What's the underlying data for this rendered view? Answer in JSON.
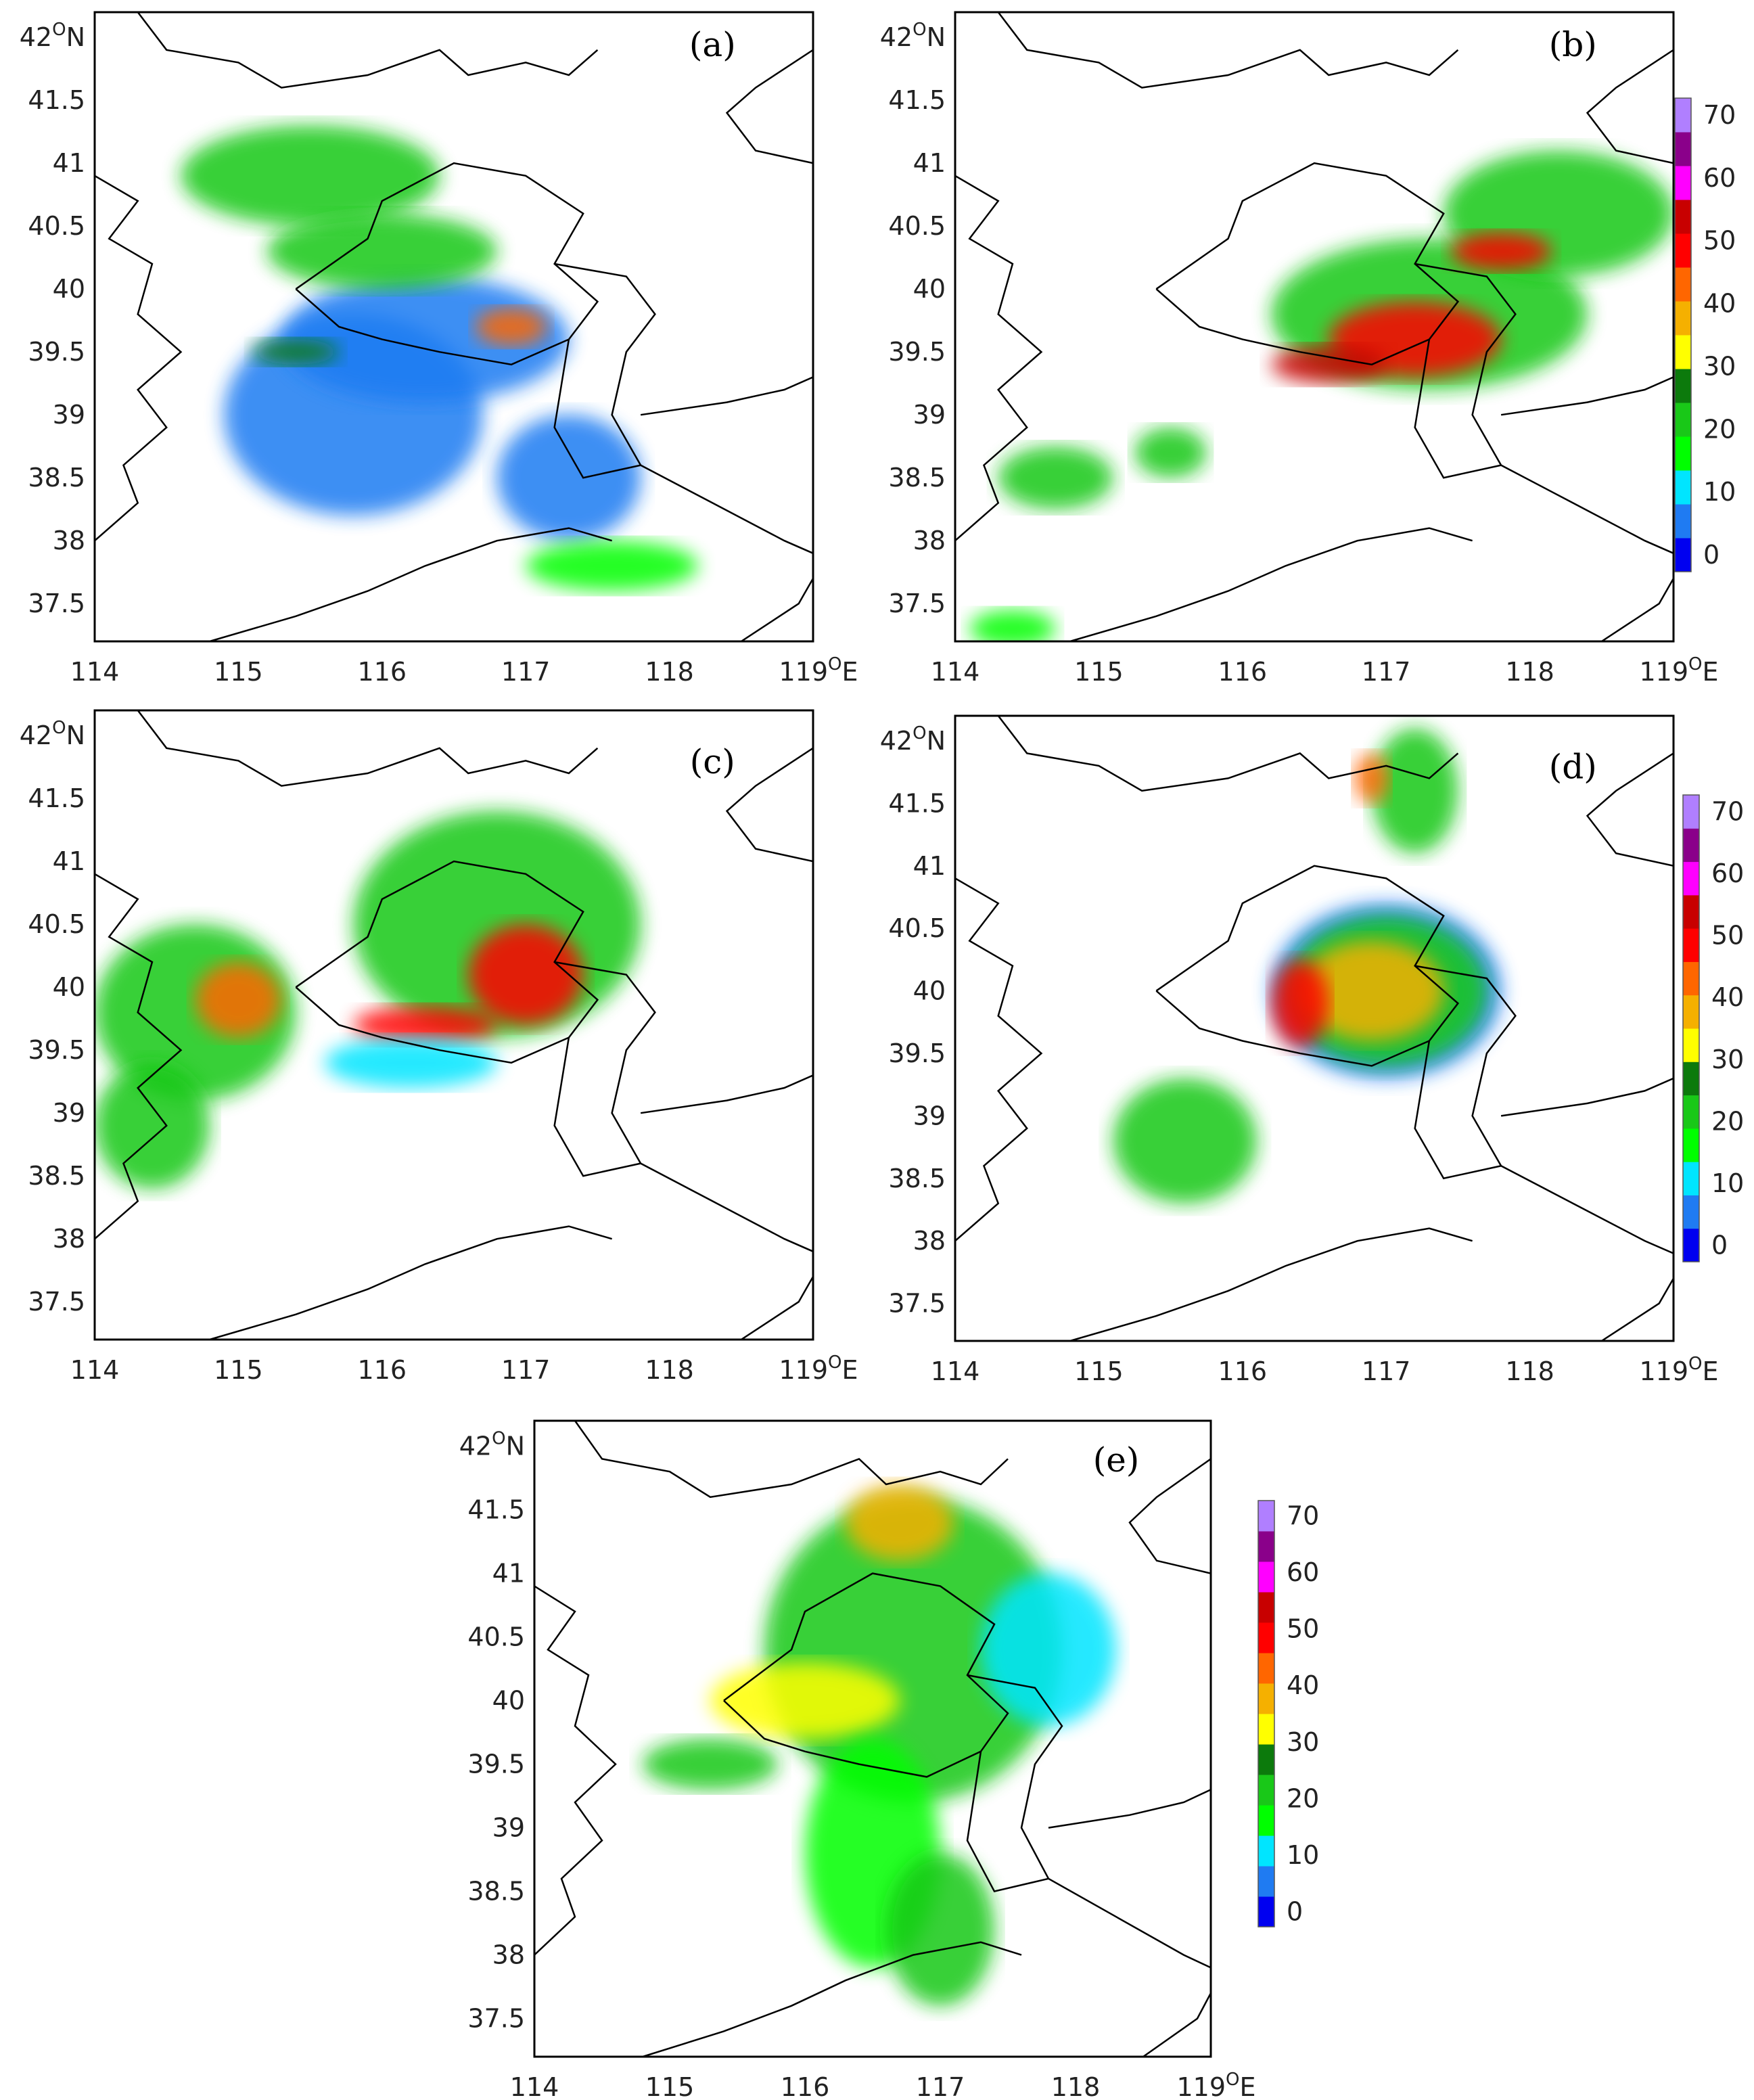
{
  "x_ticks": [
    "114",
    "115",
    "116",
    "117",
    "118"
  ],
  "x_tick_last": "119",
  "x_unit": "E",
  "y_ticks": [
    "41.5",
    "41",
    "40.5",
    "40",
    "39.5",
    "39",
    "38.5",
    "38",
    "37.5"
  ],
  "y_tick_top": "42",
  "y_unit": "N",
  "degree_symbol": "O",
  "panels": [
    {
      "label": "(a)",
      "cells": [
        {
          "lon": 115.8,
          "lat": 39.0,
          "rx": 0.9,
          "ry": 0.8,
          "dbz": 5
        },
        {
          "lon": 116.3,
          "lat": 39.6,
          "rx": 1.0,
          "ry": 0.5,
          "dbz": 5
        },
        {
          "lon": 115.5,
          "lat": 40.9,
          "rx": 0.9,
          "ry": 0.4,
          "dbz": 20
        },
        {
          "lon": 116.0,
          "lat": 40.3,
          "rx": 0.8,
          "ry": 0.3,
          "dbz": 20
        },
        {
          "lon": 116.9,
          "lat": 39.7,
          "rx": 0.25,
          "ry": 0.15,
          "dbz": 40
        },
        {
          "lon": 117.3,
          "lat": 38.5,
          "rx": 0.5,
          "ry": 0.5,
          "dbz": 5
        },
        {
          "lon": 115.4,
          "lat": 39.5,
          "rx": 0.3,
          "ry": 0.1,
          "dbz": 25
        },
        {
          "lon": 117.6,
          "lat": 37.8,
          "rx": 0.6,
          "ry": 0.2,
          "dbz": 18
        }
      ]
    },
    {
      "label": "(b)",
      "cells": [
        {
          "lon": 117.3,
          "lat": 39.8,
          "rx": 1.1,
          "ry": 0.6,
          "dbz": 20
        },
        {
          "lon": 118.2,
          "lat": 40.6,
          "rx": 0.8,
          "ry": 0.5,
          "dbz": 20
        },
        {
          "lon": 117.2,
          "lat": 39.6,
          "rx": 0.6,
          "ry": 0.3,
          "dbz": 45
        },
        {
          "lon": 116.6,
          "lat": 39.4,
          "rx": 0.4,
          "ry": 0.15,
          "dbz": 50
        },
        {
          "lon": 117.8,
          "lat": 40.3,
          "rx": 0.35,
          "ry": 0.15,
          "dbz": 48
        },
        {
          "lon": 114.7,
          "lat": 38.5,
          "rx": 0.4,
          "ry": 0.25,
          "dbz": 20
        },
        {
          "lon": 115.5,
          "lat": 38.7,
          "rx": 0.25,
          "ry": 0.2,
          "dbz": 22
        },
        {
          "lon": 114.4,
          "lat": 37.3,
          "rx": 0.3,
          "ry": 0.15,
          "dbz": 15
        }
      ]
    },
    {
      "label": "(c)",
      "cells": [
        {
          "lon": 116.8,
          "lat": 40.5,
          "rx": 1.0,
          "ry": 0.9,
          "dbz": 20
        },
        {
          "lon": 114.7,
          "lat": 39.8,
          "rx": 0.7,
          "ry": 0.7,
          "dbz": 20
        },
        {
          "lon": 114.4,
          "lat": 38.9,
          "rx": 0.4,
          "ry": 0.5,
          "dbz": 22
        },
        {
          "lon": 117.0,
          "lat": 40.1,
          "rx": 0.4,
          "ry": 0.4,
          "dbz": 45
        },
        {
          "lon": 116.3,
          "lat": 39.7,
          "rx": 0.5,
          "ry": 0.15,
          "dbz": 48
        },
        {
          "lon": 115.0,
          "lat": 39.9,
          "rx": 0.3,
          "ry": 0.3,
          "dbz": 40
        },
        {
          "lon": 116.2,
          "lat": 39.4,
          "rx": 0.6,
          "ry": 0.2,
          "dbz": 10
        }
      ]
    },
    {
      "label": "(d)",
      "cells": [
        {
          "lon": 117.0,
          "lat": 40.0,
          "rx": 0.8,
          "ry": 0.7,
          "dbz": 5
        },
        {
          "lon": 117.0,
          "lat": 40.0,
          "rx": 0.7,
          "ry": 0.6,
          "dbz": 20
        },
        {
          "lon": 116.9,
          "lat": 40.0,
          "rx": 0.5,
          "ry": 0.4,
          "dbz": 38
        },
        {
          "lon": 116.4,
          "lat": 39.9,
          "rx": 0.2,
          "ry": 0.35,
          "dbz": 48
        },
        {
          "lon": 115.6,
          "lat": 38.8,
          "rx": 0.5,
          "ry": 0.5,
          "dbz": 20
        },
        {
          "lon": 117.2,
          "lat": 41.6,
          "rx": 0.3,
          "ry": 0.5,
          "dbz": 20
        },
        {
          "lon": 116.9,
          "lat": 41.7,
          "rx": 0.12,
          "ry": 0.2,
          "dbz": 40
        }
      ]
    },
    {
      "label": "(e)",
      "cells": [
        {
          "lon": 116.8,
          "lat": 40.4,
          "rx": 1.1,
          "ry": 1.2,
          "dbz": 20
        },
        {
          "lon": 116.7,
          "lat": 41.4,
          "rx": 0.4,
          "ry": 0.3,
          "dbz": 35
        },
        {
          "lon": 116.0,
          "lat": 40.0,
          "rx": 0.7,
          "ry": 0.3,
          "dbz": 30
        },
        {
          "lon": 116.5,
          "lat": 38.8,
          "rx": 0.5,
          "ry": 0.9,
          "dbz": 18
        },
        {
          "lon": 117.0,
          "lat": 38.2,
          "rx": 0.4,
          "ry": 0.6,
          "dbz": 20
        },
        {
          "lon": 117.8,
          "lat": 40.4,
          "rx": 0.5,
          "ry": 0.6,
          "dbz": 10
        },
        {
          "lon": 115.3,
          "lat": 39.5,
          "rx": 0.5,
          "ry": 0.2,
          "dbz": 20
        }
      ]
    }
  ],
  "colorbar": {
    "ticks": [
      "70",
      "60",
      "50",
      "40",
      "30",
      "20",
      "10",
      "0"
    ],
    "colors": [
      "#0000f0",
      "#1f7bf2",
      "#00e5ff",
      "#00ff00",
      "#19c818",
      "#0c7a0c",
      "#ffff00",
      "#f5b000",
      "#ff6600",
      "#ff0000",
      "#c80000",
      "#ff00ff",
      "#8a008a",
      "#b07fff"
    ]
  },
  "map_extent": {
    "lon_min": 114,
    "lon_max": 119,
    "lat_min": 37.2,
    "lat_max": 42.2
  }
}
